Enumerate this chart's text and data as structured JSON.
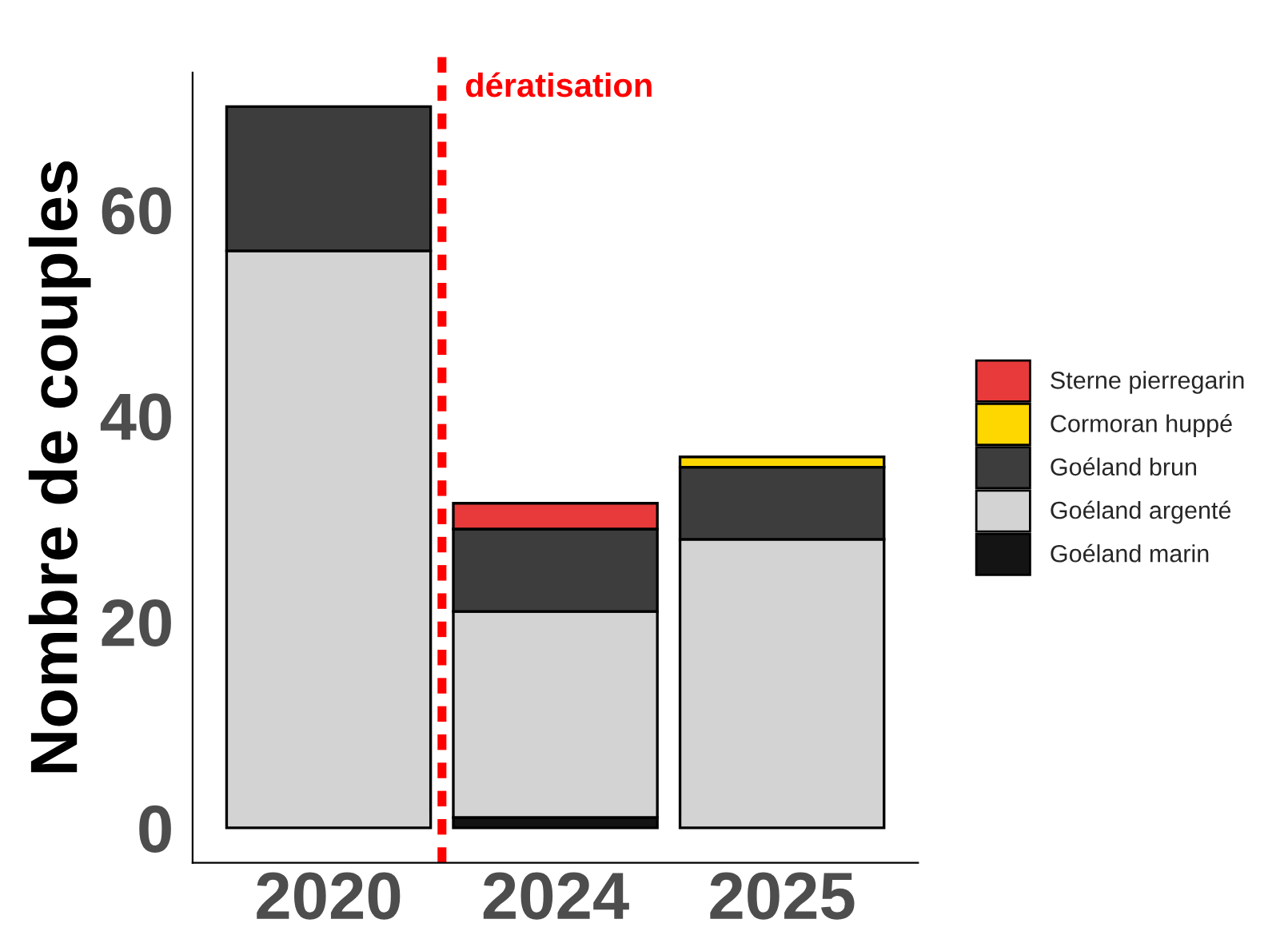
{
  "chart_data": {
    "type": "bar",
    "stacked": true,
    "ylabel": "Nombre de couples",
    "categories": [
      "2020",
      "2024",
      "2025"
    ],
    "series": [
      {
        "name": "Goéland marin",
        "color": "#141414",
        "values": [
          null,
          1,
          null
        ]
      },
      {
        "name": "Goéland argenté",
        "color": "#d3d3d3",
        "values": [
          56,
          20,
          28
        ]
      },
      {
        "name": "Goéland brun",
        "color": "#3d3d3d",
        "values": [
          14,
          8,
          7
        ]
      },
      {
        "name": "Cormoran huppé",
        "color": "#ffd700",
        "values": [
          null,
          null,
          1
        ]
      },
      {
        "name": "Sterne pierregarin",
        "color": "#e83a3a",
        "values": [
          null,
          2.5,
          null
        ]
      }
    ],
    "ylim": [
      -3.4,
      73.3
    ],
    "yticks": [
      0,
      20,
      40,
      60
    ],
    "grid": false,
    "legend": "right",
    "annotations": [
      "dératisation"
    ]
  }
}
